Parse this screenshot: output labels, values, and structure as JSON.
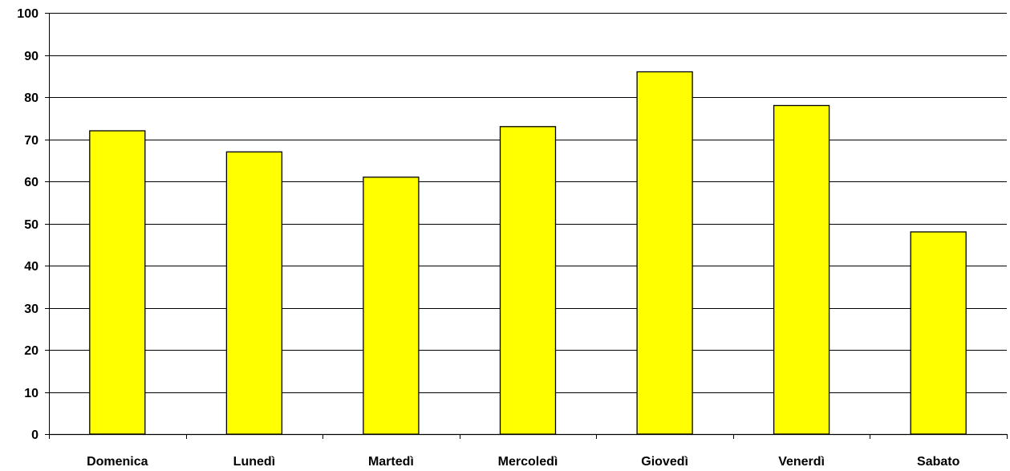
{
  "chart_data": {
    "type": "bar",
    "title": "",
    "xlabel": "",
    "ylabel": "",
    "categories": [
      "Domenica",
      "Lunedì",
      "Martedì",
      "Mercoledì",
      "Giovedì",
      "Venerdì",
      "Sabato"
    ],
    "values": [
      72,
      67,
      61,
      73,
      86,
      78,
      48
    ],
    "ylim": [
      0,
      100
    ],
    "yticks": [
      "0",
      "10",
      "20",
      "30",
      "40",
      "50",
      "60",
      "70",
      "80",
      "90",
      "100"
    ],
    "grid": true,
    "legend": "none",
    "bar_color": "#FFFF00",
    "bar_stroke": "#000000"
  }
}
